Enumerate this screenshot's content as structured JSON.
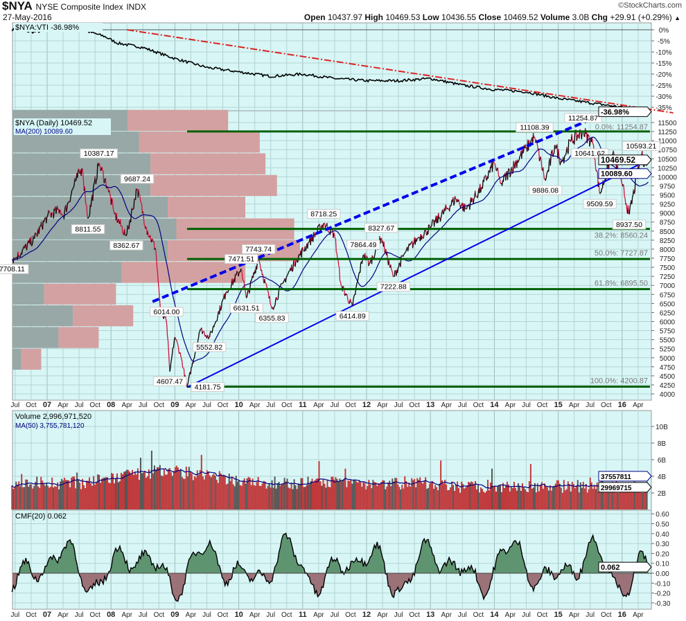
{
  "header": {
    "symbol": "$NYA",
    "name": "NYSE Composite Index",
    "exchange": "INDX",
    "date": "27-May-2016",
    "brand": "©StockCharts.com",
    "quote": [
      {
        "label": "Open",
        "value": "10437.97"
      },
      {
        "label": "High",
        "value": "10469.53"
      },
      {
        "label": "Low",
        "value": "10436.55"
      },
      {
        "label": "Close",
        "value": "10469.52"
      },
      {
        "label": "Volume",
        "value": "3.0B"
      },
      {
        "label": "Chg",
        "value": "+29.91 (+0.29%)"
      }
    ],
    "change_arrow": "▲"
  },
  "colors": {
    "background": "#d8f6f6",
    "grid": "#b3d4d4",
    "fib": "#006000",
    "trend": "#0000ee",
    "ratio_trend": "#e02020",
    "up": "#000000",
    "down": "#d0103a",
    "ma": "#000080",
    "volume": "#c0393b",
    "cmf_pos": "#5f9470",
    "cmf_neg": "#9b7278"
  },
  "chart_data": [
    {
      "type": "line",
      "panel": "ratio",
      "legend": "$NYA:VTI -36.98%",
      "last_label": "-36.98%",
      "y_ticks": [
        "0%",
        "-5%",
        "-10%",
        "-15%",
        "-20%",
        "-25%",
        "-30%",
        "-35%"
      ],
      "ylim": [
        -38,
        4
      ],
      "points": [
        [
          2006.45,
          0
        ],
        [
          2006.8,
          -1
        ],
        [
          2007.3,
          1
        ],
        [
          2007.55,
          0
        ],
        [
          2007.9,
          -3
        ],
        [
          2008.1,
          -6
        ],
        [
          2008.5,
          -8
        ],
        [
          2009.0,
          -13
        ],
        [
          2009.5,
          -17
        ],
        [
          2010.0,
          -19
        ],
        [
          2010.5,
          -21
        ],
        [
          2011.0,
          -20
        ],
        [
          2011.5,
          -22
        ],
        [
          2012.0,
          -23
        ],
        [
          2012.5,
          -23
        ],
        [
          2013.0,
          -22
        ],
        [
          2013.5,
          -25
        ],
        [
          2014.0,
          -27
        ],
        [
          2014.5,
          -28
        ],
        [
          2015.0,
          -31
        ],
        [
          2015.5,
          -33
        ],
        [
          2016.0,
          -35
        ],
        [
          2016.41,
          -36.98
        ]
      ],
      "trendline": [
        [
          2008.25,
          0
        ],
        [
          2016.8,
          -37.5
        ]
      ]
    },
    {
      "type": "line",
      "panel": "price",
      "legend": "$NYA (Daily) 10469.52",
      "ma_legend": "MA(200) 10089.60",
      "last_label": "10469.52",
      "ma_last_label": "10089.60",
      "ylim": [
        3900,
        11800
      ],
      "y_ticks": [
        "4000",
        "4250",
        "4500",
        "4750",
        "5000",
        "5250",
        "5500",
        "5750",
        "6000",
        "6250",
        "6500",
        "6750",
        "7000",
        "7250",
        "7500",
        "7750",
        "8000",
        "8250",
        "8500",
        "8750",
        "9000",
        "9250",
        "9500",
        "9750",
        "10000",
        "10250",
        "10500",
        "10750",
        "11000",
        "11250",
        "11500"
      ],
      "points": [
        [
          2006.45,
          7708
        ],
        [
          2006.5,
          7750
        ],
        [
          2006.8,
          8300
        ],
        [
          2007.0,
          8900
        ],
        [
          2007.2,
          9100
        ],
        [
          2007.25,
          8900
        ],
        [
          2007.45,
          9900
        ],
        [
          2007.55,
          10250
        ],
        [
          2007.64,
          8811.55
        ],
        [
          2007.81,
          10387.17
        ],
        [
          2007.95,
          9700
        ],
        [
          2008.05,
          9000
        ],
        [
          2008.24,
          8362.67
        ],
        [
          2008.41,
          9687.24
        ],
        [
          2008.55,
          8600
        ],
        [
          2008.7,
          8000
        ],
        [
          2008.78,
          6200
        ],
        [
          2008.87,
          6014
        ],
        [
          2008.92,
          4607.47
        ],
        [
          2009.0,
          5600
        ],
        [
          2009.1,
          5000
        ],
        [
          2009.19,
          4181.75
        ],
        [
          2009.4,
          5800
        ],
        [
          2009.54,
          5552.82
        ],
        [
          2009.8,
          6800
        ],
        [
          2010.04,
          7471.51
        ],
        [
          2010.12,
          6631.51
        ],
        [
          2010.31,
          7743.74
        ],
        [
          2010.52,
          6355.83
        ],
        [
          2010.7,
          7100
        ],
        [
          2010.9,
          7700
        ],
        [
          2011.1,
          8200
        ],
        [
          2011.33,
          8718.25
        ],
        [
          2011.5,
          8400
        ],
        [
          2011.6,
          7000
        ],
        [
          2011.78,
          6414.89
        ],
        [
          2011.95,
          7864.49
        ],
        [
          2012.05,
          7600
        ],
        [
          2012.23,
          8327.67
        ],
        [
          2012.42,
          7222.88
        ],
        [
          2012.6,
          7900
        ],
        [
          2012.8,
          8300
        ],
        [
          2013.0,
          8600
        ],
        [
          2013.4,
          9400
        ],
        [
          2013.55,
          9100
        ],
        [
          2013.8,
          9700
        ],
        [
          2014.0,
          10400
        ],
        [
          2014.1,
          9800
        ],
        [
          2014.5,
          10800
        ],
        [
          2014.63,
          11108.39
        ],
        [
          2014.8,
          9886.08
        ],
        [
          2014.95,
          10900
        ],
        [
          2015.05,
          10400
        ],
        [
          2015.2,
          11000
        ],
        [
          2015.39,
          11254.87
        ],
        [
          2015.55,
          10900
        ],
        [
          2015.65,
          9509.59
        ],
        [
          2015.85,
          10641.62
        ],
        [
          2016.0,
          9800
        ],
        [
          2016.11,
          8937.5
        ],
        [
          2016.3,
          10593.21
        ],
        [
          2016.38,
          10300
        ],
        [
          2016.41,
          10469.52
        ]
      ],
      "annotations": [
        {
          "t": 2006.45,
          "v": 7708.11,
          "label": "7708.11",
          "pos": "below"
        },
        {
          "t": 2007.64,
          "v": 8811.55,
          "label": "8811.55",
          "pos": "below"
        },
        {
          "t": 2007.81,
          "v": 10387.17,
          "label": "10387.17",
          "pos": "above"
        },
        {
          "t": 2008.24,
          "v": 8362.67,
          "label": "8362.67",
          "pos": "below"
        },
        {
          "t": 2008.41,
          "v": 9687.24,
          "label": "9687.24",
          "pos": "above"
        },
        {
          "t": 2008.87,
          "v": 6014.0,
          "label": "6014.00",
          "pos": "above"
        },
        {
          "t": 2008.92,
          "v": 4607.47,
          "label": "4607.47",
          "pos": "below"
        },
        {
          "t": 2009.19,
          "v": 4181.75,
          "label": "4181.75",
          "pos": "below"
        },
        {
          "t": 2009.54,
          "v": 5552.82,
          "label": "5552.82",
          "pos": "below"
        },
        {
          "t": 2010.04,
          "v": 7471.51,
          "label": "7471.51",
          "pos": "above"
        },
        {
          "t": 2010.12,
          "v": 6631.51,
          "label": "6631.51",
          "pos": "below"
        },
        {
          "t": 2010.31,
          "v": 7743.74,
          "label": "7743.74",
          "pos": "above"
        },
        {
          "t": 2010.52,
          "v": 6355.83,
          "label": "6355.83",
          "pos": "below"
        },
        {
          "t": 2011.33,
          "v": 8718.25,
          "label": "8718.25",
          "pos": "above"
        },
        {
          "t": 2011.78,
          "v": 6414.89,
          "label": "6414.89",
          "pos": "below"
        },
        {
          "t": 2011.95,
          "v": 7864.49,
          "label": "7864.49",
          "pos": "above"
        },
        {
          "t": 2012.23,
          "v": 8327.67,
          "label": "8327.67",
          "pos": "above"
        },
        {
          "t": 2012.42,
          "v": 7222.88,
          "label": "7222.88",
          "pos": "below"
        },
        {
          "t": 2014.63,
          "v": 11108.39,
          "label": "11108.39",
          "pos": "above"
        },
        {
          "t": 2014.8,
          "v": 9886.08,
          "label": "9886.08",
          "pos": "below"
        },
        {
          "t": 2015.39,
          "v": 11254.87,
          "label": "11254.87",
          "pos": "above"
        },
        {
          "t": 2015.65,
          "v": 9509.59,
          "label": "9509.59",
          "pos": "below"
        },
        {
          "t": 2015.85,
          "v": 10641.62,
          "label": "10641.62",
          "pos": "right"
        },
        {
          "t": 2016.11,
          "v": 8937.5,
          "label": "8937.50",
          "pos": "below"
        },
        {
          "t": 2016.3,
          "v": 10593.21,
          "label": "10593.21",
          "pos": "above"
        }
      ],
      "fibonacci": [
        {
          "v": 11254.87,
          "label": "0.0%: 11254.87"
        },
        {
          "v": 8560.24,
          "label": "38.2%: 8560.24"
        },
        {
          "v": 7727.87,
          "label": "50.0%: 7727.87"
        },
        {
          "v": 6895.5,
          "label": "61.8%: 6895.50"
        },
        {
          "v": 4200.87,
          "label": "100.0%: 4200.87"
        }
      ],
      "trendlines": [
        {
          "style": "solid",
          "from": [
            2009.19,
            4181.75
          ],
          "to": [
            2016.45,
            10500
          ]
        },
        {
          "style": "dashed",
          "from": [
            2008.65,
            6550
          ],
          "to": [
            2015.6,
            11650
          ]
        }
      ],
      "volume_by_price": [
        {
          "low": 11250,
          "high": 11850,
          "down": 0.4,
          "up": 0.35
        },
        {
          "low": 10650,
          "high": 11250,
          "down": 0.44,
          "up": 0.42
        },
        {
          "low": 10050,
          "high": 10650,
          "down": 0.48,
          "up": 0.4
        },
        {
          "low": 9450,
          "high": 10050,
          "down": 0.48,
          "up": 0.44
        },
        {
          "low": 8850,
          "high": 9450,
          "down": 0.54,
          "up": 0.27
        },
        {
          "low": 8250,
          "high": 8850,
          "down": 0.57,
          "up": 0.41
        },
        {
          "low": 7650,
          "high": 8250,
          "down": 0.54,
          "up": 0.46
        },
        {
          "low": 7050,
          "high": 7650,
          "down": 0.38,
          "up": 0.43
        },
        {
          "low": 6450,
          "high": 7050,
          "down": 0.11,
          "up": 0.25
        },
        {
          "low": 5850,
          "high": 6450,
          "down": 0.21,
          "up": 0.21
        },
        {
          "low": 5250,
          "high": 5850,
          "down": 0.16,
          "up": 0.14
        },
        {
          "low": 4650,
          "high": 5250,
          "down": 0.03,
          "up": 0.07
        }
      ]
    },
    {
      "type": "bar",
      "panel": "volume",
      "legend": "Volume 2,996,971,520",
      "ma_legend": "MA(50) 3,755,781,120",
      "last_label": "29969715",
      "ma_last_label": "37557811",
      "y_ticks": [
        "2B",
        "4B",
        "6B",
        "8B",
        "10B"
      ],
      "ylim": [
        0,
        12
      ],
      "unit": "B"
    },
    {
      "type": "area",
      "panel": "cmf",
      "legend": "CMF(20) 0.062",
      "last_label": "0.062",
      "y_ticks": [
        "0.60",
        "0.50",
        "0.40",
        "0.30",
        "0.20",
        "0.10",
        "0.00",
        "-0.10",
        "-0.20",
        "-0.30"
      ],
      "ylim": [
        -0.33,
        0.62
      ]
    }
  ],
  "x_axis": {
    "start": 2006.5,
    "labels": [
      "Jul",
      "Oct",
      "07",
      "Apr",
      "Jul",
      "Oct",
      "08",
      "Apr",
      "Jul",
      "Oct",
      "09",
      "Apr",
      "Jul",
      "Oct",
      "10",
      "Apr",
      "Jul",
      "Oct",
      "11",
      "Apr",
      "Jul",
      "Oct",
      "12",
      "Apr",
      "Jul",
      "Oct",
      "13",
      "Apr",
      "Jul",
      "Oct",
      "14",
      "Apr",
      "Jul",
      "Oct",
      "15",
      "Apr",
      "Jul",
      "Oct",
      "16",
      "Apr"
    ]
  }
}
